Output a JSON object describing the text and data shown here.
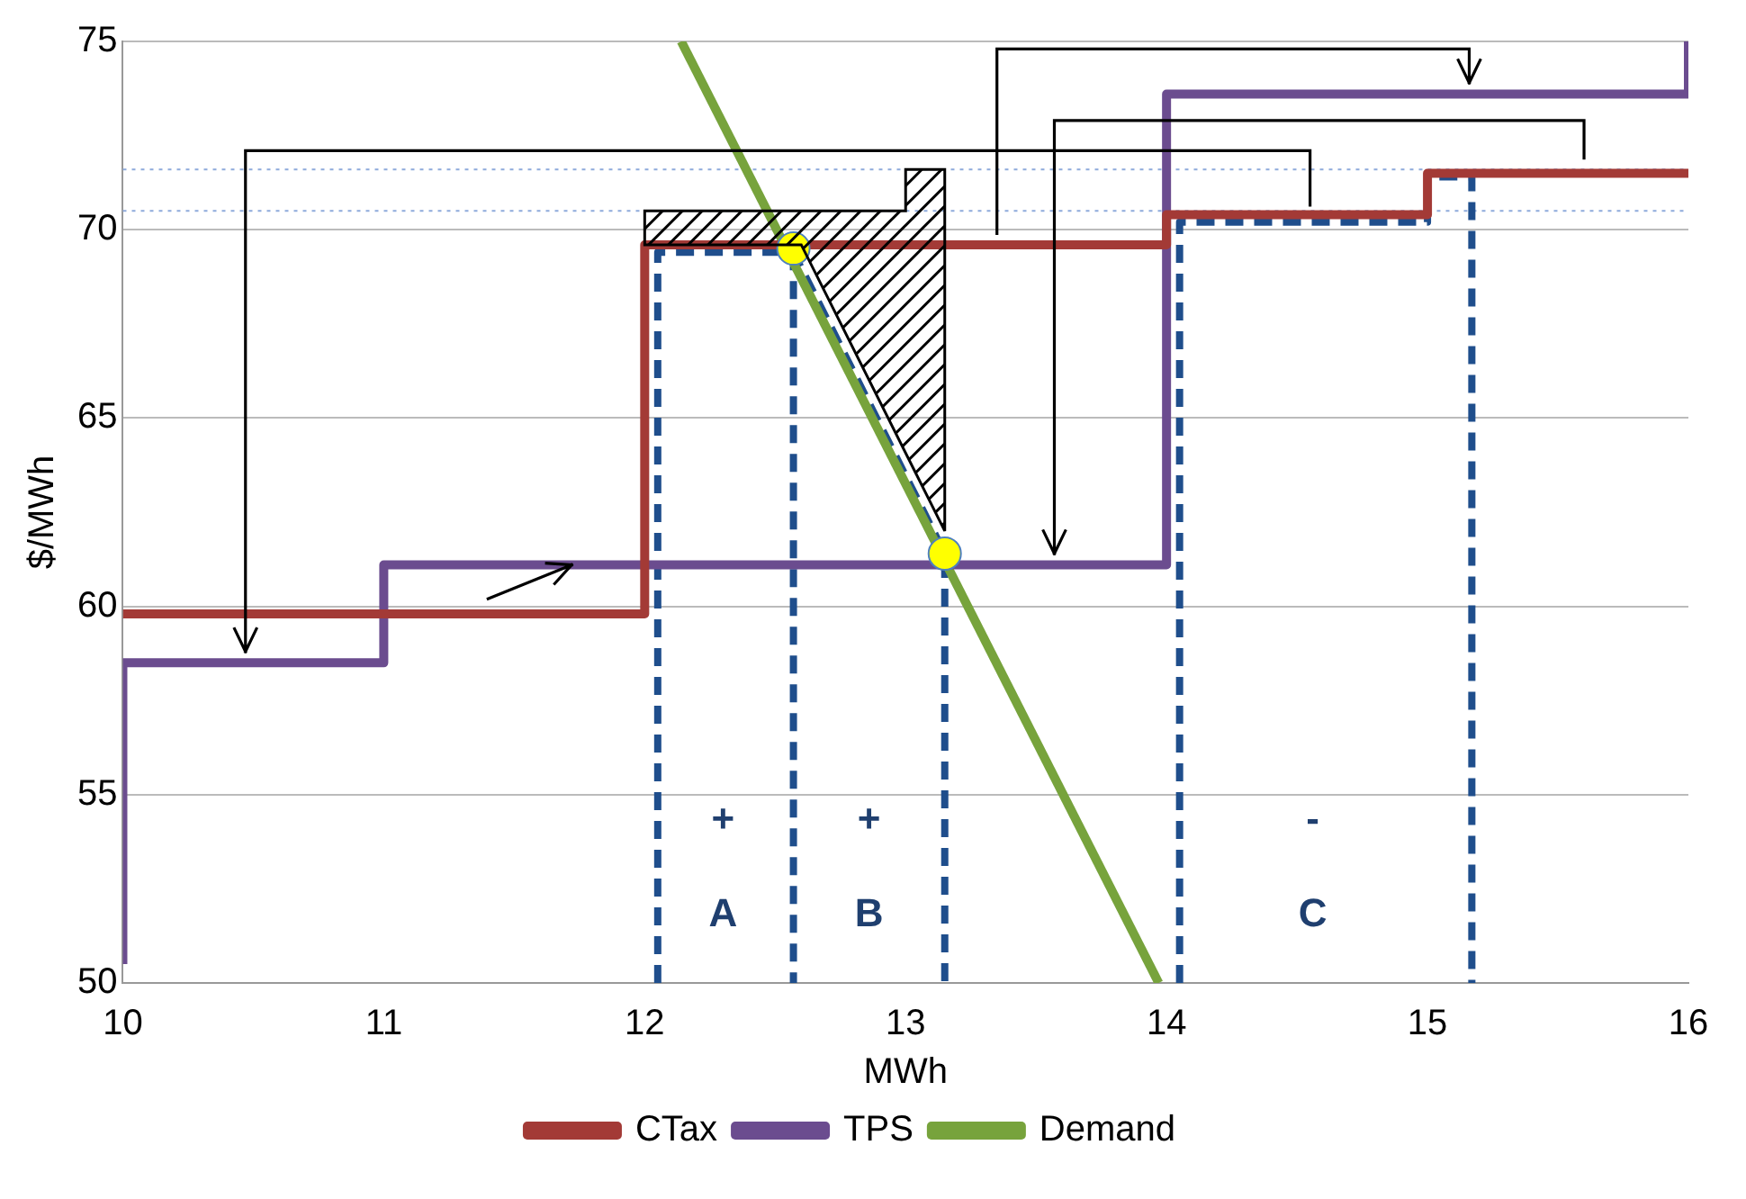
{
  "chart_data": {
    "type": "step",
    "xlabel": "MWh",
    "ylabel": "$/MWh",
    "xlim": [
      10,
      16
    ],
    "xticks": [
      10,
      11,
      12,
      13,
      14,
      15,
      16
    ],
    "ylim": [
      50,
      75
    ],
    "yticks": [
      50,
      55,
      60,
      65,
      70,
      75
    ],
    "grid": "y",
    "legend": "bottom",
    "series": [
      {
        "name": "CTax",
        "type": "step",
        "color": "#a33a36",
        "x": [
          10,
          12,
          14,
          15,
          16
        ],
        "values": [
          59.8,
          69.6,
          70.4,
          71.5,
          71.5
        ]
      },
      {
        "name": "TPS",
        "type": "step",
        "color": "#6b4c8f",
        "x": [
          10,
          10,
          11,
          14,
          16,
          16
        ],
        "values": [
          50.5,
          58.5,
          61.1,
          73.6,
          73.6,
          75
        ]
      },
      {
        "name": "Demand",
        "type": "line",
        "color": "#77a33c",
        "x": [
          12.14,
          13.97
        ],
        "values": [
          75,
          50
        ]
      },
      {
        "type": "line",
        "color": "#1f4e8c",
        "line_style": "dashed",
        "x": [
          12.05,
          12.05,
          12.57,
          13.15,
          13.15
        ],
        "values": [
          50,
          69.4,
          69.4,
          61.4,
          50
        ]
      },
      {
        "type": "line",
        "color": "#1f4e8c",
        "line_style": "dashed",
        "x": [
          12.57,
          12.57
        ],
        "values": [
          69.4,
          50
        ]
      },
      {
        "type": "line",
        "color": "#1f4e8c",
        "line_style": "dashed",
        "x": [
          14.05,
          14.05,
          15.0,
          15.0,
          15.17,
          15.17
        ],
        "values": [
          50,
          70.2,
          70.2,
          71.4,
          71.4,
          50
        ]
      },
      {
        "type": "scatter",
        "color": "#ffff00",
        "marker": "circle",
        "x": [
          12.57,
          13.15
        ],
        "values": [
          69.5,
          61.4
        ]
      }
    ],
    "ref_lines": [
      {
        "axis": "y",
        "value": 71.6,
        "color": "#8eaadb",
        "line_style": "dotted"
      },
      {
        "axis": "y",
        "value": 70.5,
        "color": "#8eaadb",
        "line_style": "dotted"
      }
    ],
    "annotations": [
      "+",
      "A",
      "+",
      "B",
      "-",
      "C"
    ]
  }
}
